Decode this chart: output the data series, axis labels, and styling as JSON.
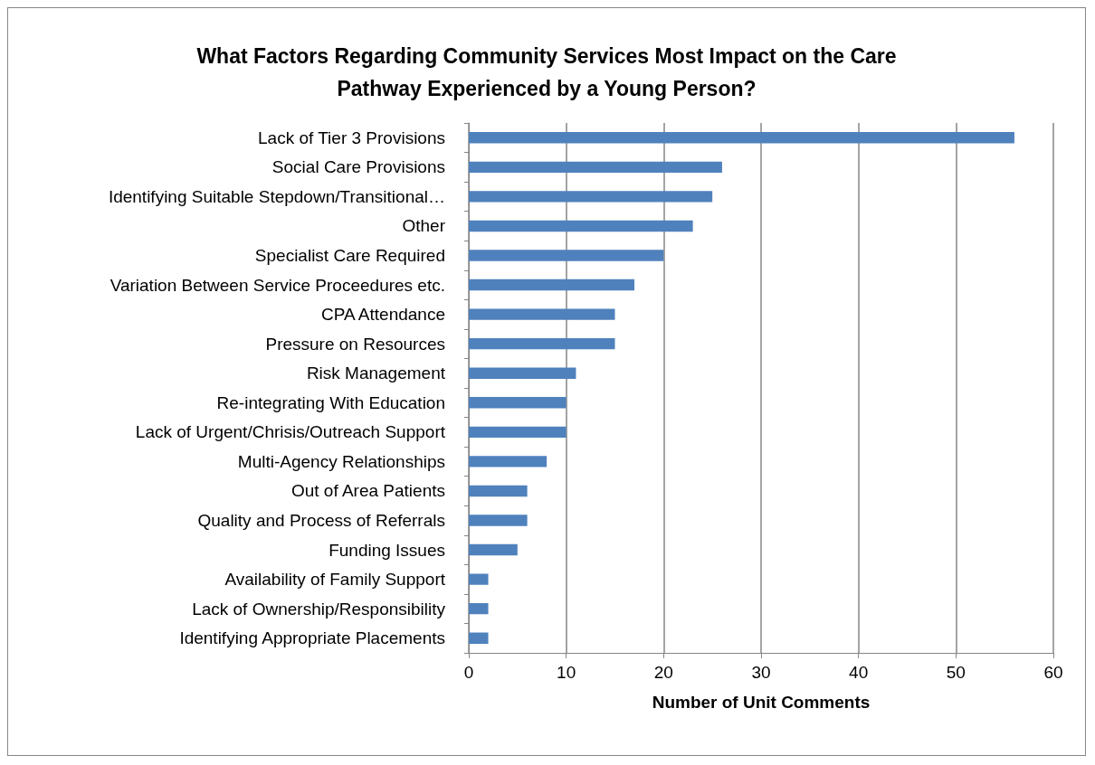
{
  "chart_data": {
    "type": "bar",
    "orientation": "horizontal",
    "title": "What Factors Regarding Community Services Most Impact on the Care\nPathway Experienced by a Young Person?",
    "xlabel": "Number of Unit Comments",
    "categories": [
      "Lack of Tier 3 Provisions",
      "Social Care Provisions",
      "Identifying Suitable Stepdown/Transitional…",
      "Other",
      "Specialist Care Required",
      "Variation Between Service Proceedures etc.",
      "CPA Attendance",
      "Pressure on Resources",
      "Risk Management",
      "Re-integrating With Education",
      "Lack of Urgent/Chrisis/Outreach Support",
      "Multi-Agency Relationships",
      "Out of Area Patients",
      "Quality and Process of Referrals",
      "Funding Issues",
      "Availability of Family Support",
      "Lack of Ownership/Responsibility",
      "Identifying Appropriate Placements"
    ],
    "values": [
      56,
      26,
      25,
      23,
      20,
      17,
      15,
      15,
      11,
      10,
      10,
      8,
      6,
      6,
      5,
      2,
      2,
      2
    ],
    "color": "#4f81bd",
    "xlim": [
      0,
      60
    ],
    "xticks": [
      0,
      10,
      20,
      30,
      40,
      50,
      60
    ],
    "grid": "x"
  }
}
